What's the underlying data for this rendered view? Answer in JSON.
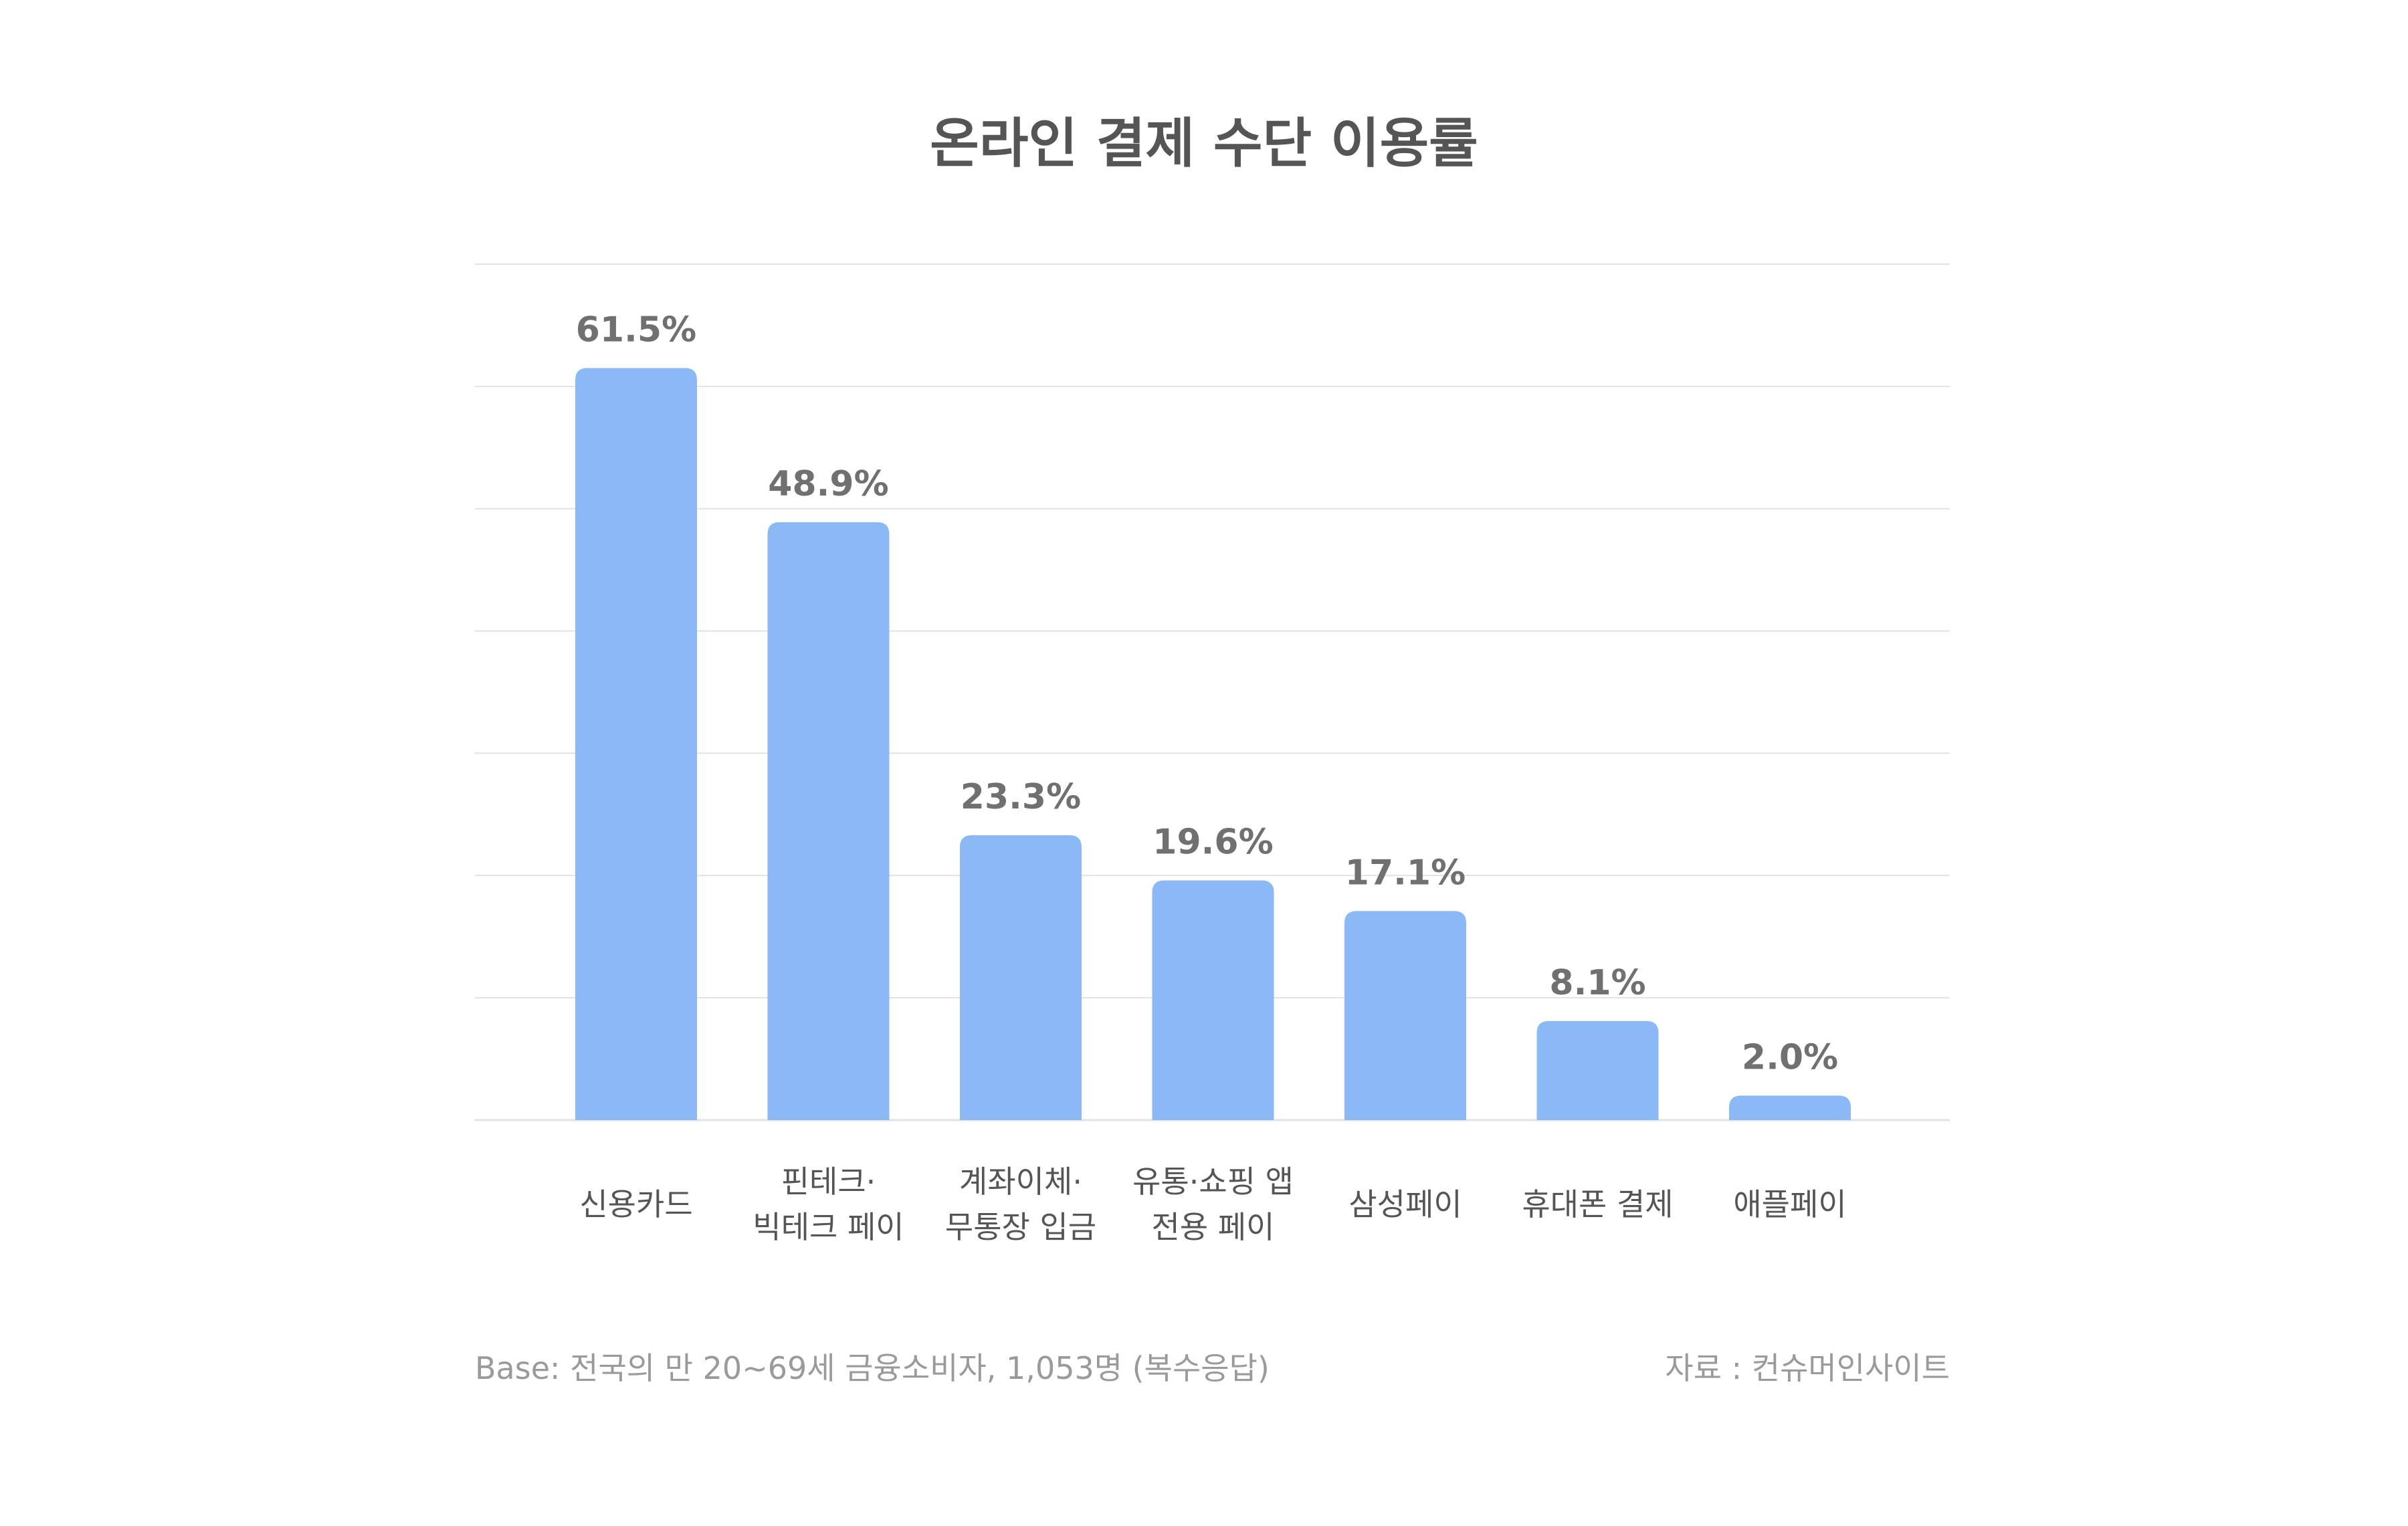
{
  "chart_data": {
    "type": "bar",
    "title": "온라인 결제 수단 이용률",
    "categories": [
      [
        "신용카드"
      ],
      [
        "핀테크·",
        "빅테크 페이"
      ],
      [
        "계좌이체·",
        "무통장 입금"
      ],
      [
        "유통·쇼핑 앱",
        "전용 페이"
      ],
      [
        "삼성페이"
      ],
      [
        "휴대폰 결제"
      ],
      [
        "애플페이"
      ]
    ],
    "values": [
      61.5,
      48.9,
      23.3,
      19.6,
      17.1,
      8.1,
      2.0
    ],
    "data_labels": [
      "61.5%",
      "48.9%",
      "23.3%",
      "19.6%",
      "17.1%",
      "8.1%",
      "2.0%"
    ],
    "ylim": [
      0,
      70
    ],
    "gridline_step": 10,
    "grid": true,
    "bar_color": "#8ab9f6",
    "label_color": "#707070",
    "grid_color": "#e2e2e2"
  },
  "footer": {
    "base": "Base: 전국의 만 20~69세 금융소비자, 1,053명 (복수응답)",
    "source": "자료 : 컨슈머인사이트"
  }
}
